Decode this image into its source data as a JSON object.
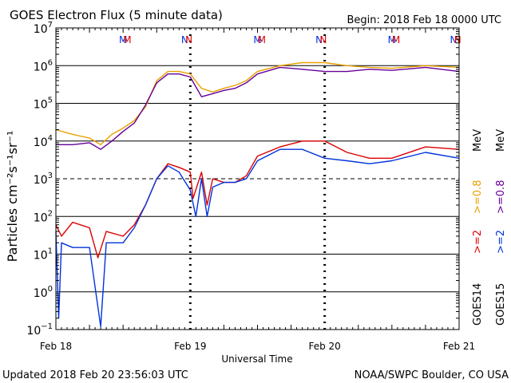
{
  "title": "GOES Electron Flux (5 minute data)",
  "begin_label": "Begin: 2018 Feb 18 0000 UTC",
  "updated_label": "Updated 2018 Feb 20 23:56:03 UTC",
  "credit_label": "NOAA/SWPC Boulder, CO USA",
  "chart_data": {
    "type": "line",
    "title": "GOES Electron Flux (5 minute data)",
    "xlabel": "Universal Time",
    "ylabel": "Particles cm⁻²s⁻¹sr⁻¹",
    "y_scale": "log",
    "ylim": [
      0.1,
      10000000
    ],
    "xlim": [
      "2018-02-18 00:00",
      "2018-02-21 00:00"
    ],
    "x_ticks": [
      "Feb 18",
      "Feb 19",
      "Feb 20",
      "Feb 21"
    ],
    "y_ticks": [
      "10^-1",
      "10^0",
      "10^1",
      "10^2",
      "10^3",
      "10^4",
      "10^5",
      "10^6",
      "10^7"
    ],
    "dashed_reference_line": 1000,
    "legend": {
      "placement": "right",
      "groups": [
        {
          "satellite": "GOES14",
          "items": [
            {
              "label": ">=2",
              "color": "#dd0000"
            },
            {
              "label": ">=0.8",
              "color": "#e8a000"
            }
          ],
          "unit": "MeV"
        },
        {
          "satellite": "GOES15",
          "items": [
            {
              "label": ">=2",
              "color": "#0033dd"
            },
            {
              "label": ">=0.8",
              "color": "#660099"
            }
          ],
          "unit": "MeV"
        }
      ]
    },
    "markers": [
      {
        "label": "M",
        "color": "#0033dd",
        "time": "2018-02-18 12:00"
      },
      {
        "label": "M",
        "color": "#dd0000",
        "time": "2018-02-18 12:45"
      },
      {
        "label": "N",
        "color": "#0033dd",
        "time": "2018-02-18 23:00"
      },
      {
        "label": "N",
        "color": "#dd0000",
        "time": "2018-02-18 23:45"
      },
      {
        "label": "M",
        "color": "#0033dd",
        "time": "2018-02-19 12:00"
      },
      {
        "label": "M",
        "color": "#dd0000",
        "time": "2018-02-19 12:45"
      },
      {
        "label": "N",
        "color": "#0033dd",
        "time": "2018-02-19 23:00"
      },
      {
        "label": "N",
        "color": "#dd0000",
        "time": "2018-02-19 23:45"
      },
      {
        "label": "M",
        "color": "#0033dd",
        "time": "2018-02-20 12:00"
      },
      {
        "label": "M",
        "color": "#dd0000",
        "time": "2018-02-20 12:45"
      },
      {
        "label": "N",
        "color": "#0033dd",
        "time": "2018-02-20 23:00"
      },
      {
        "label": "N",
        "color": "#dd0000",
        "time": "2018-02-20 23:45"
      }
    ],
    "series": [
      {
        "name": "GOES14 >=0.8 MeV",
        "color": "#e8a000",
        "points": [
          [
            "2018-02-18 00:00",
            20000
          ],
          [
            "2018-02-18 03:00",
            15000
          ],
          [
            "2018-02-18 06:00",
            12000
          ],
          [
            "2018-02-18 08:00",
            8000
          ],
          [
            "2018-02-18 10:00",
            15000
          ],
          [
            "2018-02-18 12:00",
            22000
          ],
          [
            "2018-02-18 14:00",
            35000
          ],
          [
            "2018-02-18 16:00",
            80000
          ],
          [
            "2018-02-18 18:00",
            400000
          ],
          [
            "2018-02-18 20:00",
            700000
          ],
          [
            "2018-02-18 22:00",
            700000
          ],
          [
            "2018-02-19 00:00",
            600000
          ],
          [
            "2018-02-19 02:00",
            250000
          ],
          [
            "2018-02-19 04:00",
            200000
          ],
          [
            "2018-02-19 06:00",
            250000
          ],
          [
            "2018-02-19 08:00",
            300000
          ],
          [
            "2018-02-19 10:00",
            400000
          ],
          [
            "2018-02-19 12:00",
            700000
          ],
          [
            "2018-02-19 16:00",
            1000000
          ],
          [
            "2018-02-19 20:00",
            1200000
          ],
          [
            "2018-02-20 00:00",
            1200000
          ],
          [
            "2018-02-20 04:00",
            1000000
          ],
          [
            "2018-02-20 08:00",
            900000
          ],
          [
            "2018-02-20 12:00",
            850000
          ],
          [
            "2018-02-20 18:00",
            1000000
          ],
          [
            "2018-02-21 00:00",
            900000
          ]
        ]
      },
      {
        "name": "GOES15 >=0.8 MeV",
        "color": "#660099",
        "points": [
          [
            "2018-02-18 00:00",
            8000
          ],
          [
            "2018-02-18 03:00",
            8000
          ],
          [
            "2018-02-18 06:00",
            9000
          ],
          [
            "2018-02-18 08:00",
            6000
          ],
          [
            "2018-02-18 10:00",
            10000
          ],
          [
            "2018-02-18 12:00",
            18000
          ],
          [
            "2018-02-18 14:00",
            30000
          ],
          [
            "2018-02-18 16:00",
            90000
          ],
          [
            "2018-02-18 18:00",
            350000
          ],
          [
            "2018-02-18 20:00",
            600000
          ],
          [
            "2018-02-18 22:00",
            600000
          ],
          [
            "2018-02-19 00:00",
            500000
          ],
          [
            "2018-02-19 02:00",
            150000
          ],
          [
            "2018-02-19 04:00",
            180000
          ],
          [
            "2018-02-19 06:00",
            220000
          ],
          [
            "2018-02-19 08:00",
            250000
          ],
          [
            "2018-02-19 10:00",
            350000
          ],
          [
            "2018-02-19 12:00",
            600000
          ],
          [
            "2018-02-19 16:00",
            900000
          ],
          [
            "2018-02-19 20:00",
            800000
          ],
          [
            "2018-02-20 00:00",
            700000
          ],
          [
            "2018-02-20 04:00",
            700000
          ],
          [
            "2018-02-20 08:00",
            800000
          ],
          [
            "2018-02-20 12:00",
            750000
          ],
          [
            "2018-02-20 18:00",
            900000
          ],
          [
            "2018-02-21 00:00",
            700000
          ]
        ]
      },
      {
        "name": "GOES14 >=2 MeV",
        "color": "#dd0000",
        "points": [
          [
            "2018-02-18 00:00",
            60
          ],
          [
            "2018-02-18 01:00",
            30
          ],
          [
            "2018-02-18 03:00",
            70
          ],
          [
            "2018-02-18 06:00",
            50
          ],
          [
            "2018-02-18 07:30",
            8
          ],
          [
            "2018-02-18 09:00",
            40
          ],
          [
            "2018-02-18 12:00",
            30
          ],
          [
            "2018-02-18 14:00",
            60
          ],
          [
            "2018-02-18 16:00",
            200
          ],
          [
            "2018-02-18 18:00",
            1000
          ],
          [
            "2018-02-18 20:00",
            2500
          ],
          [
            "2018-02-18 22:00",
            2000
          ],
          [
            "2018-02-19 00:00",
            1500
          ],
          [
            "2018-02-19 00:30",
            300
          ],
          [
            "2018-02-19 02:00",
            1500
          ],
          [
            "2018-02-19 03:00",
            200
          ],
          [
            "2018-02-19 04:00",
            1000
          ],
          [
            "2018-02-19 06:00",
            800
          ],
          [
            "2018-02-19 08:00",
            800
          ],
          [
            "2018-02-19 10:00",
            1200
          ],
          [
            "2018-02-19 12:00",
            4000
          ],
          [
            "2018-02-19 16:00",
            7000
          ],
          [
            "2018-02-19 20:00",
            10000
          ],
          [
            "2018-02-20 00:00",
            10000
          ],
          [
            "2018-02-20 04:00",
            5000
          ],
          [
            "2018-02-20 08:00",
            3500
          ],
          [
            "2018-02-20 12:00",
            3500
          ],
          [
            "2018-02-20 18:00",
            7000
          ],
          [
            "2018-02-21 00:00",
            6000
          ]
        ]
      },
      {
        "name": "GOES15 >=2 MeV",
        "color": "#0033dd",
        "points": [
          [
            "2018-02-18 00:00",
            40
          ],
          [
            "2018-02-18 00:30",
            0.2
          ],
          [
            "2018-02-18 01:00",
            20
          ],
          [
            "2018-02-18 03:00",
            15
          ],
          [
            "2018-02-18 06:00",
            15
          ],
          [
            "2018-02-18 08:00",
            0.12
          ],
          [
            "2018-02-18 09:00",
            20
          ],
          [
            "2018-02-18 12:00",
            20
          ],
          [
            "2018-02-18 14:00",
            50
          ],
          [
            "2018-02-18 16:00",
            200
          ],
          [
            "2018-02-18 18:00",
            1000
          ],
          [
            "2018-02-18 20:00",
            2200
          ],
          [
            "2018-02-18 22:00",
            1500
          ],
          [
            "2018-02-19 00:00",
            500
          ],
          [
            "2018-02-19 01:00",
            100
          ],
          [
            "2018-02-19 02:00",
            1000
          ],
          [
            "2018-02-19 03:00",
            100
          ],
          [
            "2018-02-19 04:00",
            600
          ],
          [
            "2018-02-19 06:00",
            800
          ],
          [
            "2018-02-19 08:00",
            800
          ],
          [
            "2018-02-19 10:00",
            1000
          ],
          [
            "2018-02-19 12:00",
            3000
          ],
          [
            "2018-02-19 16:00",
            6000
          ],
          [
            "2018-02-19 20:00",
            6000
          ],
          [
            "2018-02-20 00:00",
            3500
          ],
          [
            "2018-02-20 04:00",
            3000
          ],
          [
            "2018-02-20 08:00",
            2500
          ],
          [
            "2018-02-20 12:00",
            3000
          ],
          [
            "2018-02-20 18:00",
            5000
          ],
          [
            "2018-02-21 00:00",
            3500
          ]
        ]
      }
    ]
  }
}
